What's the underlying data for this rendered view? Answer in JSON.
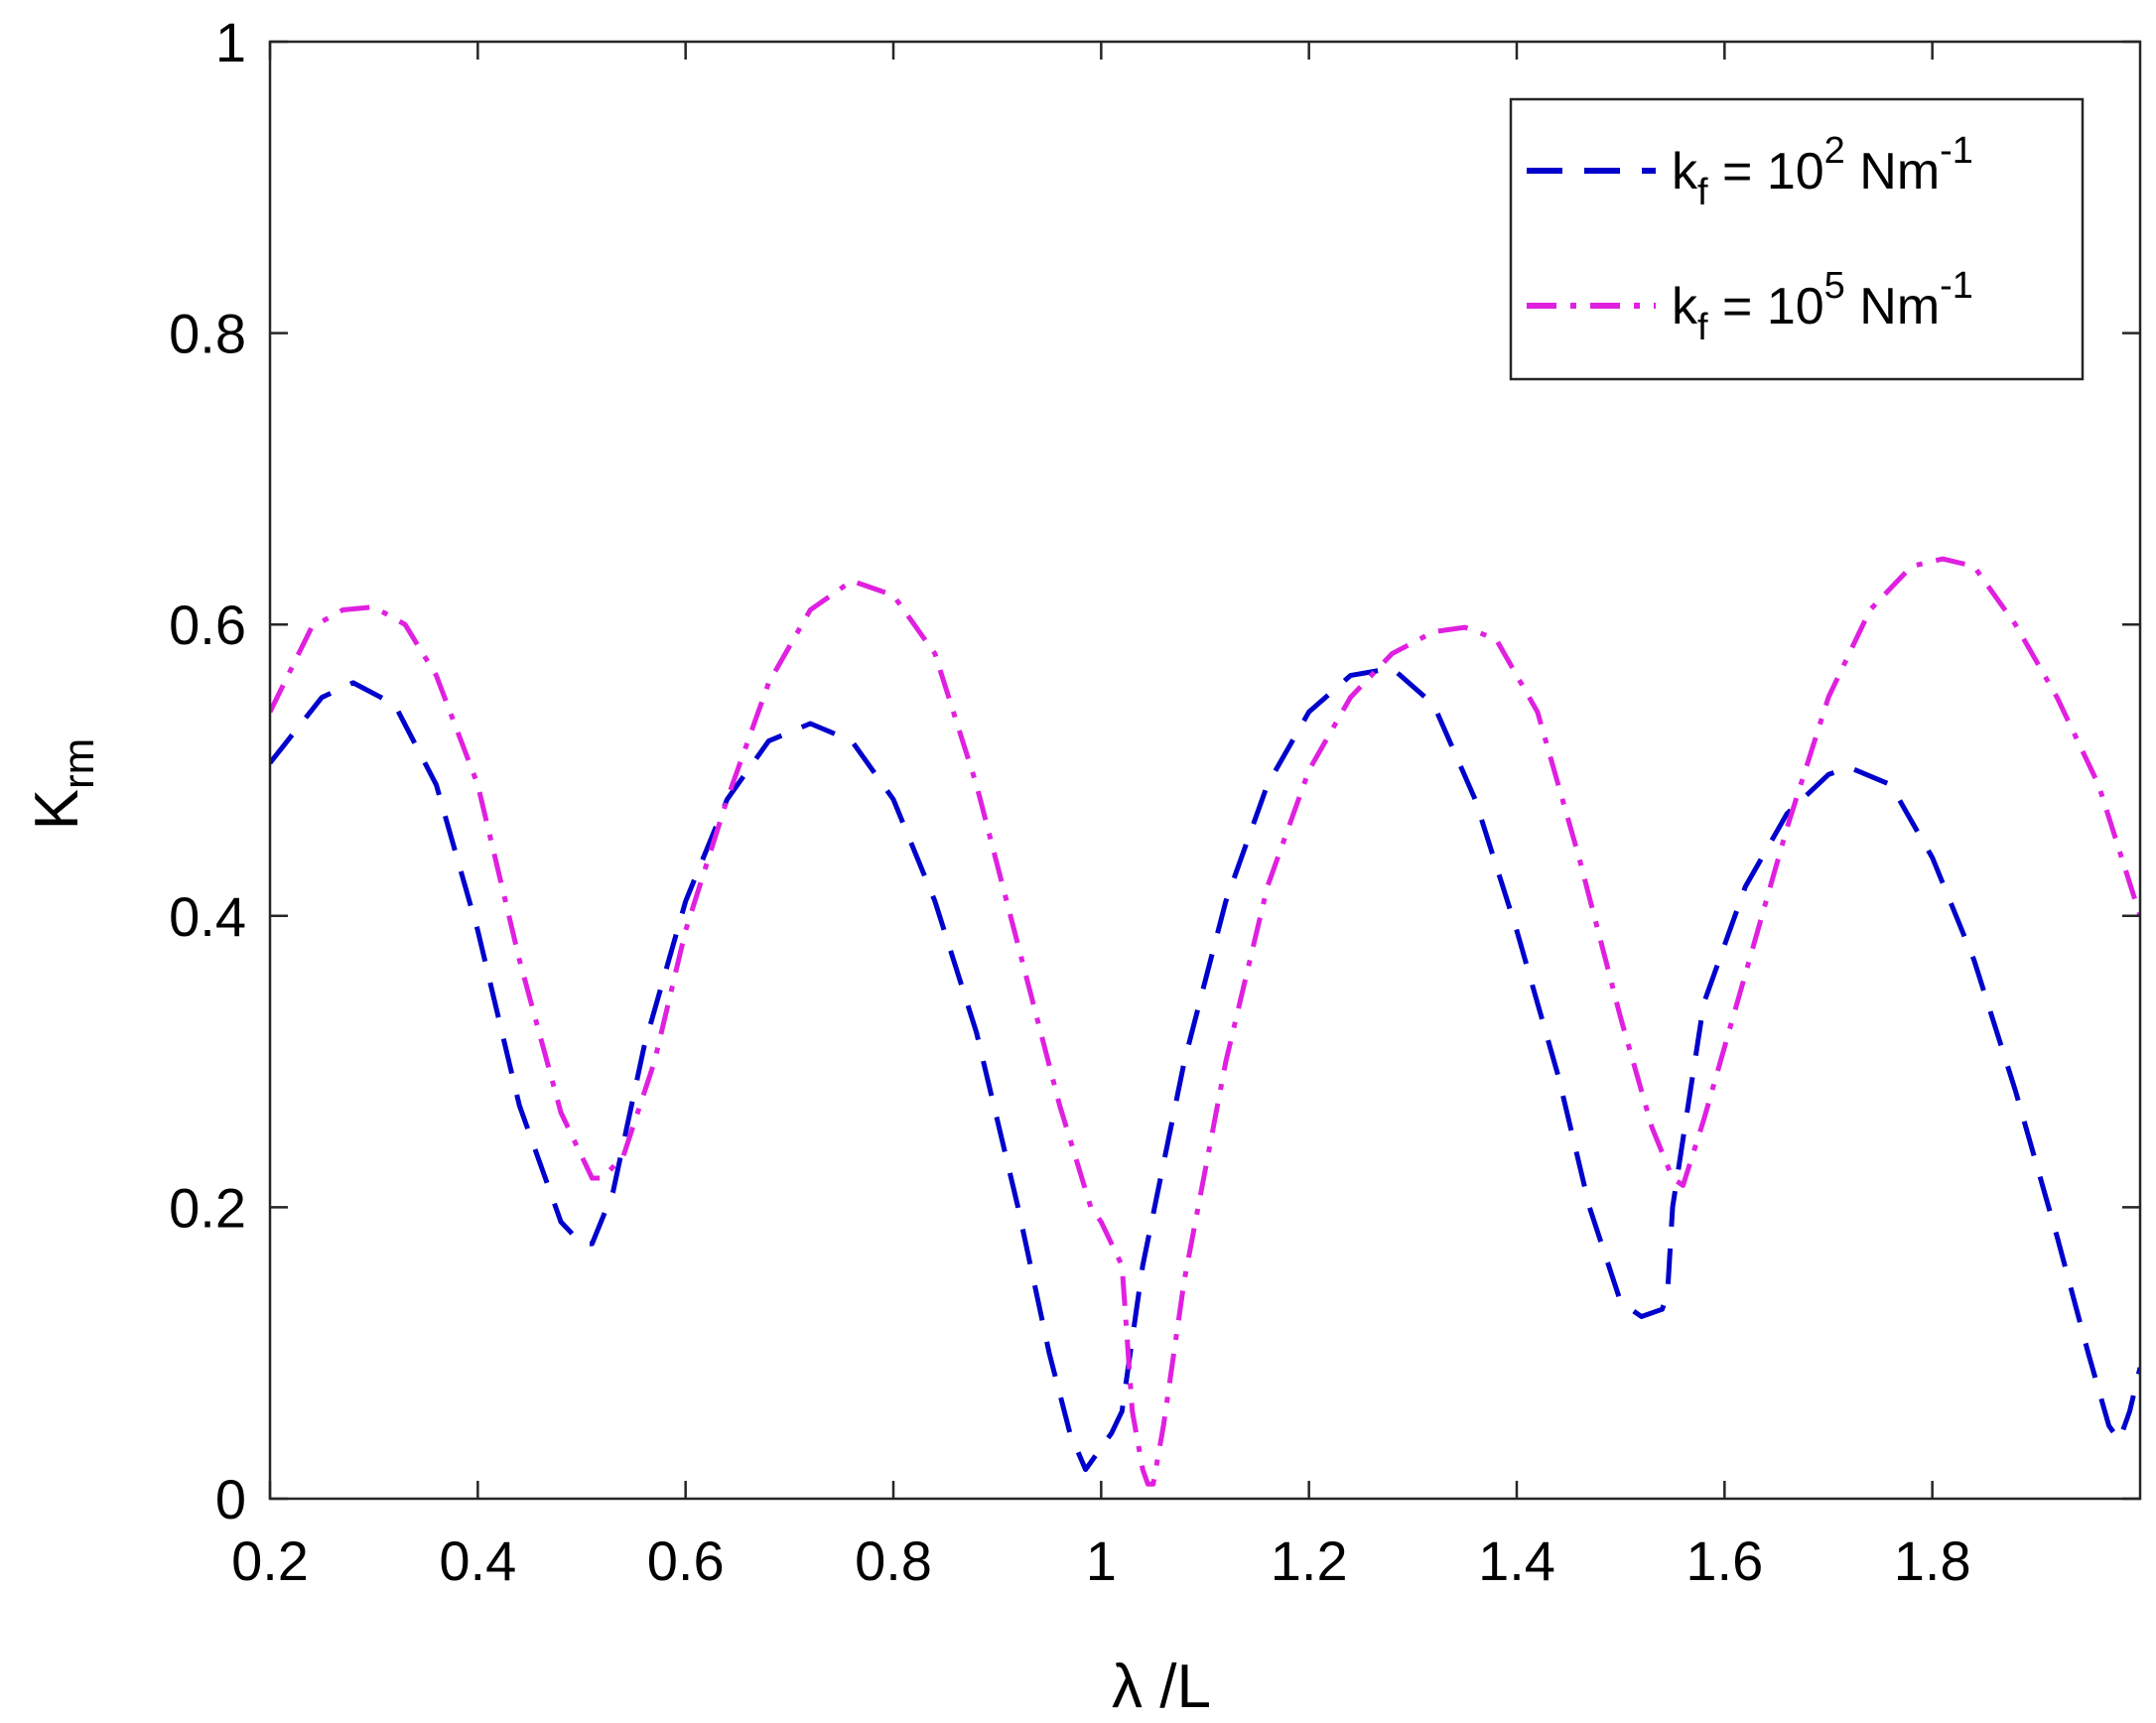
{
  "chart_data": {
    "type": "line",
    "xlabel": "λ /L",
    "ylabel": {
      "main": "K",
      "sub": "rm"
    },
    "xlim": [
      0.2,
      2.0
    ],
    "ylim": [
      0,
      1
    ],
    "xticks": [
      0.2,
      0.4,
      0.6,
      0.8,
      1,
      1.2,
      1.4,
      1.6,
      1.8
    ],
    "xtick_labels": [
      "0.2",
      "0.4",
      "0.6",
      "0.8",
      "1",
      "1.2",
      "1.4",
      "1.6",
      "1.8"
    ],
    "yticks": [
      0,
      0.2,
      0.4,
      0.6,
      0.8,
      1
    ],
    "ytick_labels": [
      "0",
      "0.2",
      "0.4",
      "0.6",
      "0.8",
      "1"
    ],
    "grid": false,
    "legend_position": "top-right",
    "series": [
      {
        "legend": {
          "k": "k",
          "k_sub": "f",
          "eq": " = 10",
          "exp": "2",
          "unit": " Nm",
          "unit_exp": "-1"
        },
        "color": "#0000cc",
        "style": "dashed",
        "x": [
          0.2,
          0.25,
          0.28,
          0.32,
          0.36,
          0.4,
          0.44,
          0.48,
          0.5,
          0.51,
          0.53,
          0.56,
          0.6,
          0.64,
          0.68,
          0.72,
          0.76,
          0.8,
          0.84,
          0.88,
          0.92,
          0.95,
          0.97,
          0.985,
          0.99,
          1.0,
          1.01,
          1.02,
          1.04,
          1.08,
          1.12,
          1.16,
          1.2,
          1.24,
          1.28,
          1.32,
          1.36,
          1.4,
          1.44,
          1.47,
          1.5,
          1.52,
          1.54,
          1.545,
          1.55,
          1.58,
          1.62,
          1.66,
          1.7,
          1.72,
          1.76,
          1.8,
          1.84,
          1.88,
          1.92,
          1.95,
          1.97,
          1.98,
          1.99,
          2.0
        ],
        "y": [
          0.505,
          0.55,
          0.56,
          0.545,
          0.49,
          0.39,
          0.27,
          0.19,
          0.175,
          0.175,
          0.21,
          0.31,
          0.41,
          0.48,
          0.52,
          0.532,
          0.52,
          0.48,
          0.41,
          0.32,
          0.2,
          0.1,
          0.045,
          0.02,
          0.025,
          0.035,
          0.045,
          0.06,
          0.16,
          0.3,
          0.41,
          0.49,
          0.54,
          0.565,
          0.57,
          0.545,
          0.48,
          0.39,
          0.29,
          0.2,
          0.135,
          0.125,
          0.13,
          0.14,
          0.2,
          0.34,
          0.42,
          0.47,
          0.497,
          0.502,
          0.49,
          0.44,
          0.37,
          0.28,
          0.18,
          0.1,
          0.05,
          0.04,
          0.06,
          0.09
        ]
      },
      {
        "legend": {
          "k": "k",
          "k_sub": "f",
          "eq": " = 10",
          "exp": "5",
          "unit": " Nm",
          "unit_exp": "-1"
        },
        "color": "#e020e0",
        "style": "dashdot",
        "x": [
          0.2,
          0.24,
          0.27,
          0.3,
          0.33,
          0.36,
          0.4,
          0.44,
          0.48,
          0.51,
          0.52,
          0.54,
          0.57,
          0.6,
          0.64,
          0.68,
          0.72,
          0.76,
          0.8,
          0.84,
          0.88,
          0.92,
          0.96,
          0.99,
          1.0,
          1.01,
          1.02,
          1.03,
          1.04,
          1.045,
          1.05,
          1.06,
          1.08,
          1.12,
          1.16,
          1.2,
          1.24,
          1.28,
          1.32,
          1.35,
          1.38,
          1.42,
          1.46,
          1.5,
          1.53,
          1.55,
          1.56,
          1.58,
          1.62,
          1.66,
          1.7,
          1.74,
          1.78,
          1.81,
          1.84,
          1.88,
          1.92,
          1.96,
          2.0
        ],
        "y": [
          0.54,
          0.598,
          0.61,
          0.612,
          0.6,
          0.565,
          0.49,
          0.37,
          0.265,
          0.22,
          0.22,
          0.235,
          0.3,
          0.39,
          0.48,
          0.56,
          0.61,
          0.63,
          0.62,
          0.58,
          0.49,
          0.38,
          0.27,
          0.2,
          0.19,
          0.175,
          0.16,
          0.06,
          0.02,
          0.01,
          0.01,
          0.05,
          0.15,
          0.3,
          0.42,
          0.5,
          0.55,
          0.58,
          0.595,
          0.598,
          0.59,
          0.54,
          0.44,
          0.33,
          0.255,
          0.22,
          0.215,
          0.26,
          0.36,
          0.46,
          0.55,
          0.61,
          0.64,
          0.645,
          0.64,
          0.6,
          0.55,
          0.49,
          0.4
        ]
      }
    ]
  }
}
